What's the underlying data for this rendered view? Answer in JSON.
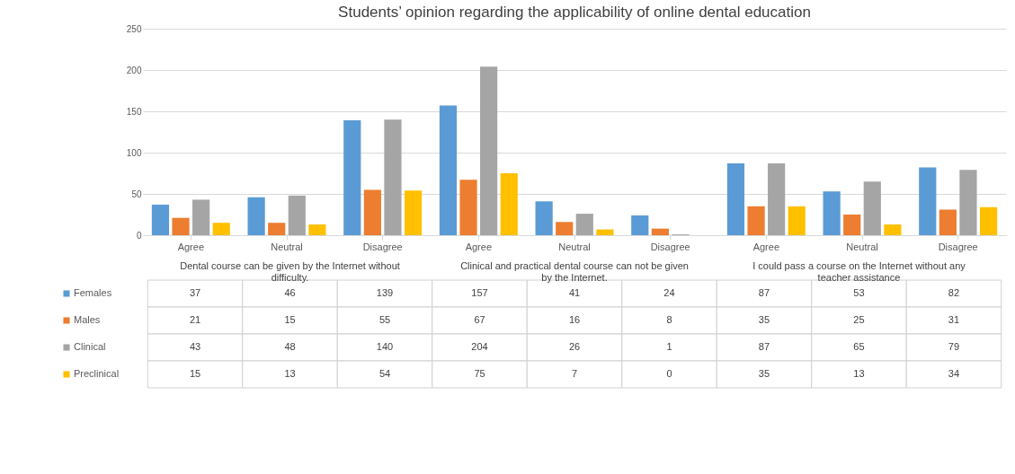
{
  "chart_data": {
    "type": "bar",
    "title": "Students’ opinion regarding the applicability of online dental education",
    "categories": [
      "Agree",
      "Neutral",
      "Disagree",
      "Agree",
      "Neutral",
      "Disagree",
      "Agree",
      "Neutral",
      "Disagree"
    ],
    "annotations": [
      "Dental course can be given by the Internet without difficulty.",
      "Clinical and practical dental course can not be given by the Internet.",
      "I could pass a course on the Internet without any teacher assistance"
    ],
    "series": [
      {
        "name": "Females",
        "color": "#5b9bd5",
        "values": [
          37,
          46,
          139,
          157,
          41,
          24,
          87,
          53,
          82
        ]
      },
      {
        "name": "Males",
        "color": "#ed7d31",
        "values": [
          21,
          15,
          55,
          67,
          16,
          8,
          35,
          25,
          31
        ]
      },
      {
        "name": "Clinical",
        "color": "#a5a5a5",
        "values": [
          43,
          48,
          140,
          204,
          26,
          1,
          87,
          65,
          79
        ]
      },
      {
        "name": "Preclinical",
        "color": "#ffc000",
        "values": [
          15,
          13,
          54,
          75,
          7,
          0,
          35,
          13,
          34
        ]
      }
    ],
    "ylim": [
      0,
      250
    ],
    "yticks": [
      0,
      50,
      100,
      150,
      200,
      250
    ],
    "grid": "y",
    "legend": "bottom left",
    "data_labels": true
  }
}
